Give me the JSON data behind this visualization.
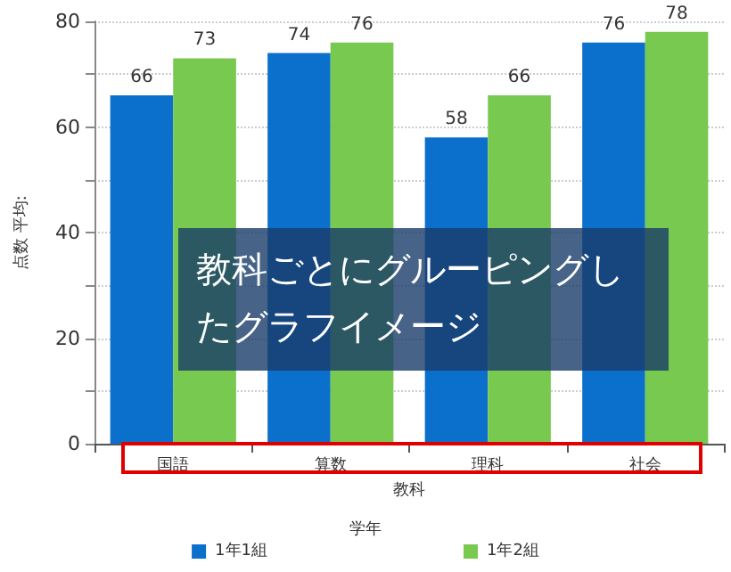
{
  "chart_data": {
    "type": "bar",
    "categories": [
      "国語",
      "算数",
      "理科",
      "社会"
    ],
    "series": [
      {
        "name": "1年1組",
        "color": "#0b6fcc",
        "values": [
          66,
          74,
          58,
          76
        ]
      },
      {
        "name": "1年2組",
        "color": "#77c94f",
        "values": [
          73,
          76,
          66,
          78
        ]
      }
    ],
    "xlabel": "教科",
    "ylabel": "点数 平均:",
    "legend_title": "学年",
    "legend": "bottom",
    "ylim": [
      0,
      80
    ],
    "yticks": [
      0,
      {
        "value": 10,
        "label": null
      },
      20,
      {
        "value": 30,
        "label": null
      },
      40,
      {
        "value": 50,
        "label": null
      },
      60,
      {
        "value": 70,
        "label": null
      },
      80
    ],
    "grid": "y",
    "data_labels": true,
    "annotations": [
      "教科ごとにグルーピングしたグラフイメージ"
    ]
  }
}
